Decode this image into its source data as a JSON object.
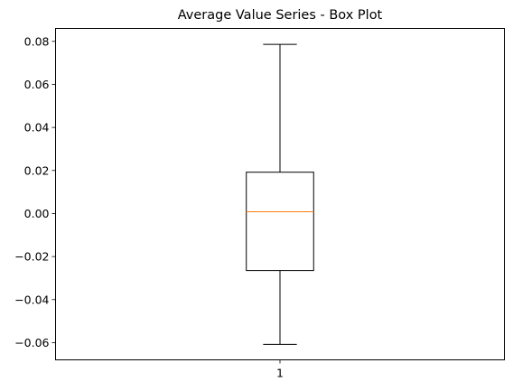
{
  "chart_data": {
    "type": "box",
    "title": "Average Value Series - Box Plot",
    "xlabel": "",
    "ylabel": "",
    "categories": [
      "1"
    ],
    "ylim": [
      -0.068,
      0.086
    ],
    "yticks": [
      -0.06,
      -0.04,
      -0.02,
      0.0,
      0.02,
      0.04,
      0.06,
      0.08
    ],
    "ytick_labels": [
      "−0.06",
      "−0.04",
      "−0.02",
      "0.00",
      "0.02",
      "0.04",
      "0.06",
      "0.08"
    ],
    "grid": false,
    "boxes": [
      {
        "name": "1",
        "whisker_low": -0.0608,
        "q1": -0.0265,
        "median": 0.0008,
        "q3": 0.0192,
        "whisker_high": 0.0786
      }
    ],
    "colors": {
      "box": "#000000",
      "median": "#ff7f0e"
    }
  }
}
